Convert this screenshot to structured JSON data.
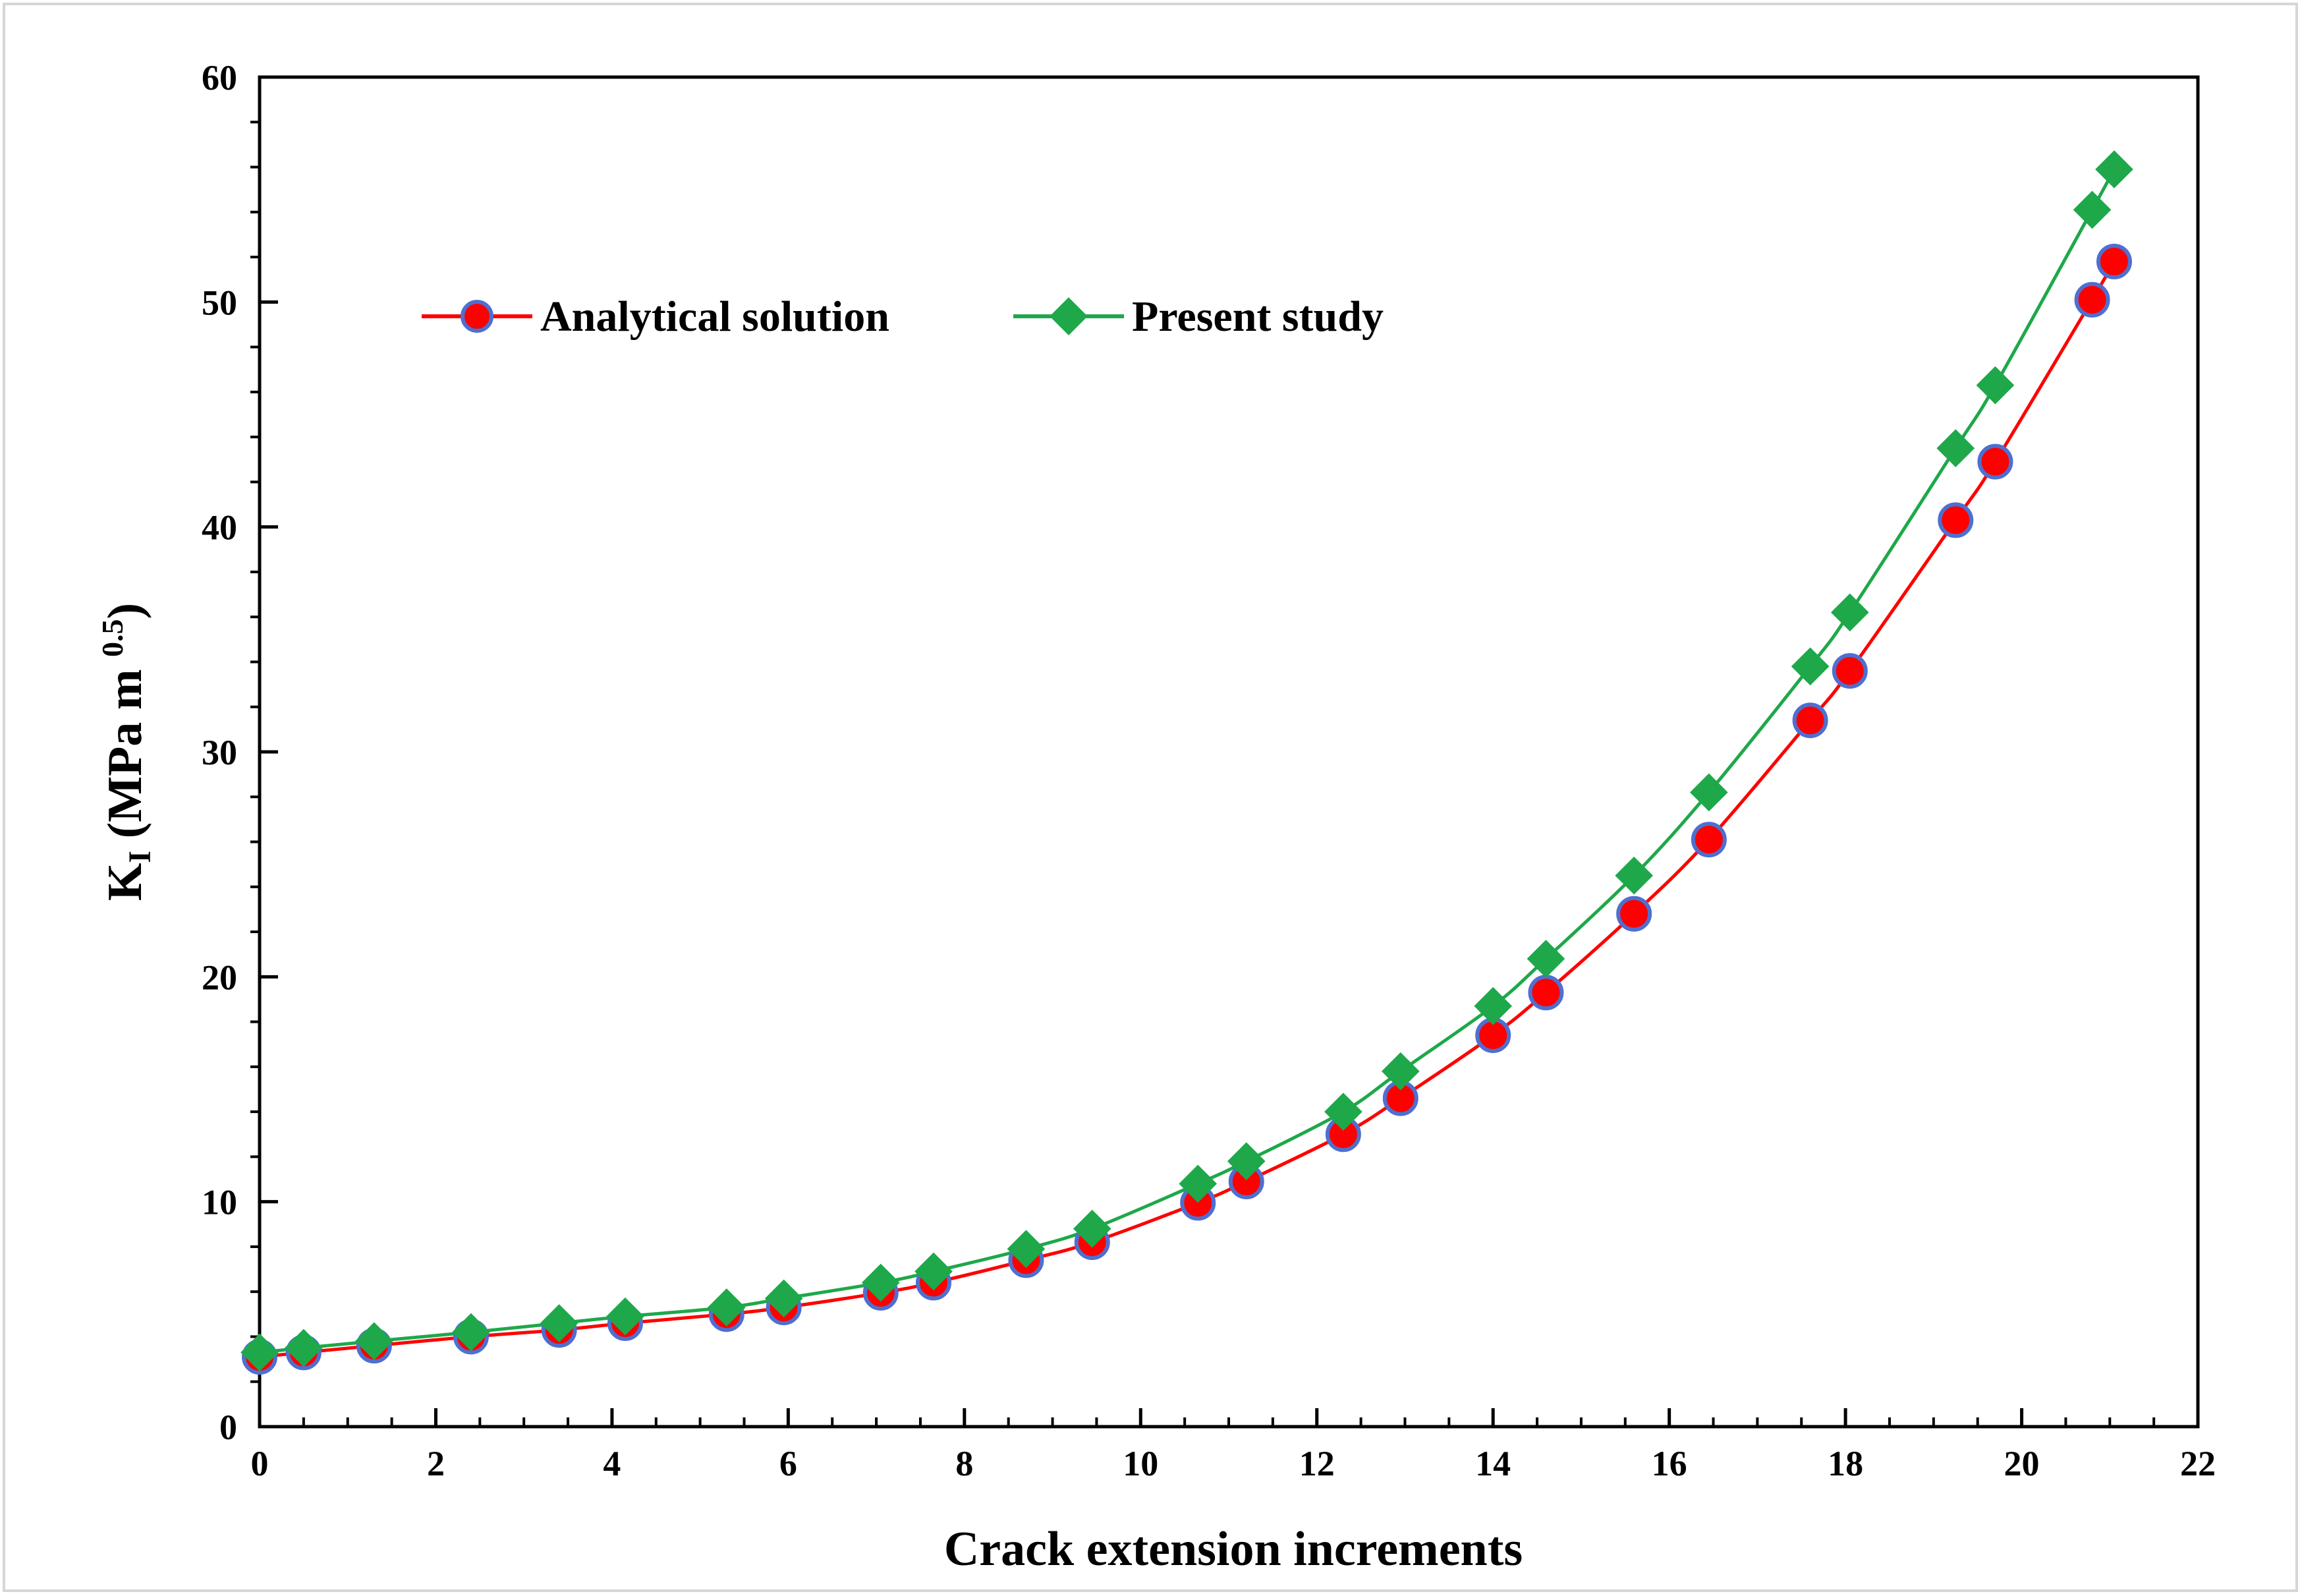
{
  "chart_data": {
    "type": "line",
    "title": "",
    "xlabel": "Crack extension increments",
    "ylabel_main": "K",
    "ylabel_sub": "I",
    "ylabel_rest": " (MPa m ",
    "ylabel_sup": "0.5",
    "ylabel_close": ")",
    "xlim": [
      0,
      22
    ],
    "ylim": [
      0,
      60
    ],
    "xticks": [
      0,
      2,
      4,
      6,
      8,
      10,
      12,
      14,
      16,
      18,
      20,
      22
    ],
    "yticks": [
      0,
      10,
      20,
      30,
      40,
      50,
      60
    ],
    "x_minor_step": 0.5,
    "y_minor_step": 2,
    "grid": false,
    "legend_position": "top-left",
    "x": [
      0,
      0.5,
      1.3,
      2.4,
      3.4,
      4.15,
      5.3,
      5.95,
      7.05,
      7.65,
      8.7,
      9.45,
      10.65,
      11.2,
      12.3,
      12.95,
      14.0,
      14.6,
      15.6,
      16.45,
      17.6,
      18.05,
      19.25,
      19.7,
      20.8,
      21.05
    ],
    "series": [
      {
        "name": "Analytical solution",
        "line_color": "#ff0000",
        "marker": "circle",
        "marker_fill": "#ff0000",
        "marker_edge": "#4f6fd0",
        "values": [
          3.1,
          3.3,
          3.6,
          4.0,
          4.3,
          4.6,
          5.0,
          5.3,
          5.95,
          6.4,
          7.4,
          8.2,
          9.95,
          10.9,
          13.0,
          14.6,
          17.4,
          19.3,
          22.8,
          26.1,
          31.4,
          33.6,
          40.3,
          42.9,
          50.1,
          51.8
        ]
      },
      {
        "name": "Present study",
        "line_color": "#1ea84a",
        "marker": "diamond",
        "marker_fill": "#1ea84a",
        "marker_edge": "#1ea84a",
        "values": [
          3.3,
          3.5,
          3.8,
          4.2,
          4.6,
          4.9,
          5.3,
          5.7,
          6.4,
          6.9,
          7.9,
          8.8,
          10.8,
          11.8,
          14.0,
          15.8,
          18.7,
          20.8,
          24.5,
          28.2,
          33.8,
          36.2,
          43.5,
          46.3,
          54.1,
          55.9
        ]
      }
    ]
  }
}
